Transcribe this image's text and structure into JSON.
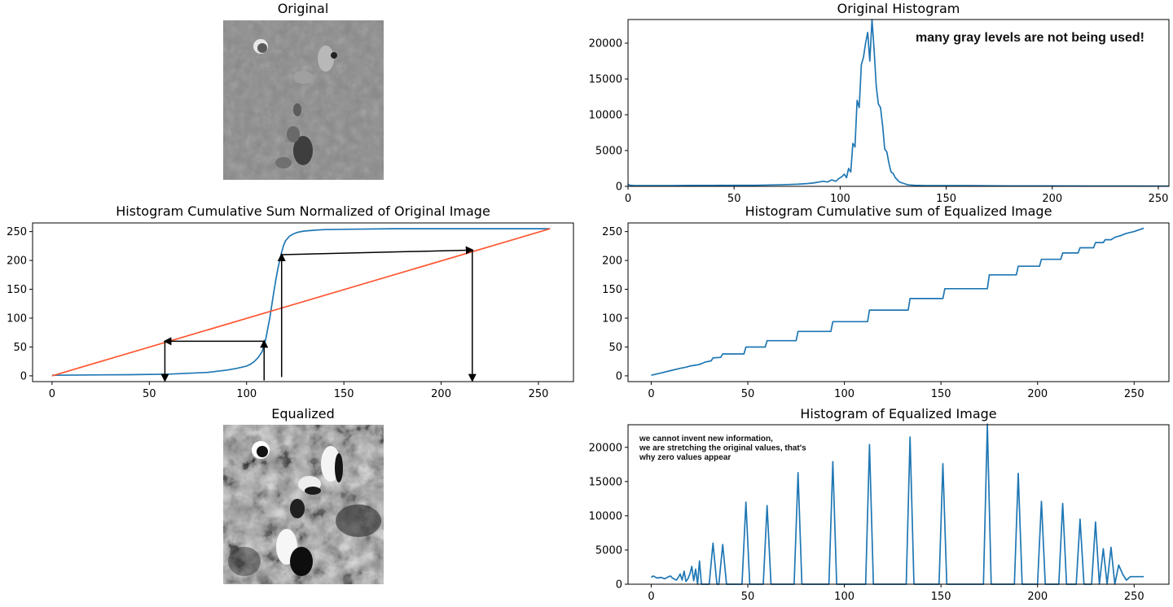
{
  "chart_data": [
    {
      "id": "original_image",
      "type": "image",
      "title": "Original",
      "tone": "low-contrast"
    },
    {
      "id": "original_histogram",
      "type": "line",
      "title": "Original Histogram",
      "xlim": [
        0,
        255
      ],
      "ylim": [
        0,
        23300
      ],
      "xticks": [
        0,
        50,
        100,
        150,
        200,
        250
      ],
      "yticks": [
        0,
        5000,
        10000,
        15000,
        20000
      ],
      "series": [
        {
          "color": "#1f77b4",
          "x": [
            0,
            1,
            3,
            5,
            10,
            20,
            30,
            40,
            50,
            60,
            70,
            75,
            80,
            85,
            88,
            90,
            92,
            94,
            96,
            98,
            99,
            100,
            101,
            102,
            103,
            104,
            105,
            106,
            107,
            108,
            109,
            110,
            111,
            112,
            113,
            114,
            115,
            116,
            117,
            118,
            119,
            120,
            121,
            122,
            123,
            124,
            125,
            126,
            127,
            128,
            130,
            132,
            135,
            140,
            150,
            160,
            180,
            200,
            220,
            240,
            255
          ],
          "y": [
            300,
            150,
            100,
            100,
            100,
            100,
            120,
            120,
            150,
            150,
            200,
            250,
            300,
            400,
            500,
            600,
            700,
            600,
            900,
            700,
            1000,
            1200,
            1400,
            1700,
            1200,
            2500,
            2000,
            6000,
            5500,
            12000,
            11000,
            17000,
            18000,
            20000,
            21500,
            17500,
            23300,
            19000,
            14000,
            11500,
            11000,
            8500,
            5200,
            4800,
            3200,
            2000,
            1800,
            1200,
            900,
            600,
            400,
            200,
            150,
            100,
            100,
            100,
            60,
            60,
            50,
            40,
            30
          ]
        }
      ],
      "annotations": [
        "many gray levels are not being used!"
      ]
    },
    {
      "id": "cdf_original",
      "type": "line",
      "title": "Histogram Cumulative Sum Normalized of Original Image",
      "xlim": [
        -10,
        268
      ],
      "ylim": [
        -10,
        265
      ],
      "xticks": [
        0,
        50,
        100,
        150,
        200,
        250
      ],
      "yticks": [
        0,
        50,
        100,
        150,
        200,
        250
      ],
      "series": [
        {
          "color": "#1f77b4",
          "x": [
            0,
            20,
            40,
            60,
            80,
            90,
            95,
            100,
            102,
            104,
            106,
            108,
            109,
            110,
            111,
            112,
            113,
            114,
            115,
            116,
            117,
            118,
            119,
            120,
            122,
            124,
            126,
            128,
            130,
            135,
            140,
            150,
            175,
            200,
            225,
            256
          ],
          "y": [
            1,
            1.5,
            2,
            3,
            6,
            10,
            13,
            17,
            20,
            25,
            32,
            42,
            52,
            66,
            84,
            102,
            124,
            146,
            166,
            184,
            200,
            214,
            226,
            234,
            242,
            246,
            248.5,
            250,
            251,
            252.5,
            253.5,
            254,
            255,
            255,
            255,
            255
          ]
        },
        {
          "color": "#ff5733",
          "x": [
            0,
            256
          ],
          "y": [
            0,
            255
          ]
        }
      ],
      "arrows": [
        {
          "from": [
            109,
            -8
          ],
          "to": [
            109,
            60
          ]
        },
        {
          "from": [
            109,
            60
          ],
          "to": [
            58,
            60
          ]
        },
        {
          "from": [
            58,
            60
          ],
          "to": [
            58,
            -8
          ]
        },
        {
          "from": [
            118,
            -2
          ],
          "to": [
            118,
            210
          ]
        },
        {
          "from": [
            118,
            210
          ],
          "to": [
            216,
            218
          ]
        },
        {
          "from": [
            216,
            218
          ],
          "to": [
            216,
            -8
          ]
        }
      ]
    },
    {
      "id": "cdf_equalized",
      "type": "line",
      "title": "Histogram Cumulative sum of Equalized Image",
      "xlim": [
        -12,
        268
      ],
      "ylim": [
        -10,
        265
      ],
      "xticks": [
        0,
        50,
        100,
        150,
        200,
        250
      ],
      "yticks": [
        0,
        50,
        100,
        150,
        200,
        250
      ],
      "series": [
        {
          "color": "#1f77b4",
          "x": [
            0,
            5,
            10,
            15,
            18,
            20,
            22,
            24,
            26,
            28,
            31,
            32,
            36,
            37,
            48,
            49,
            59,
            60,
            75,
            76,
            93,
            94,
            112,
            113,
            133,
            134,
            151,
            152,
            174,
            175,
            189,
            190,
            201,
            202,
            212,
            213,
            221,
            222,
            229,
            230,
            234,
            235,
            238,
            240,
            243,
            246,
            250,
            255
          ],
          "y": [
            1,
            5,
            9,
            13,
            15,
            17,
            18,
            19,
            21,
            24,
            26,
            31,
            32,
            38,
            38,
            50,
            50,
            61,
            61,
            77,
            77,
            94,
            94,
            114,
            114,
            134,
            134,
            151,
            151,
            175,
            175,
            190,
            190,
            202,
            202,
            213,
            213,
            222,
            222,
            231,
            231,
            236,
            236,
            240,
            243,
            247,
            250,
            256
          ]
        }
      ]
    },
    {
      "id": "equalized_image",
      "type": "image",
      "title": "Equalized",
      "tone": "high-contrast"
    },
    {
      "id": "equalized_histogram",
      "type": "line",
      "title": "Histogram of Equalized Image",
      "xlim": [
        -12,
        268
      ],
      "ylim": [
        0,
        23300
      ],
      "xticks": [
        0,
        50,
        100,
        150,
        200,
        250
      ],
      "yticks": [
        0,
        5000,
        10000,
        15000,
        20000
      ],
      "series": [
        {
          "color": "#1f77b4",
          "x": [
            0,
            1,
            3,
            5,
            7,
            9,
            10,
            11,
            13,
            14,
            15,
            16,
            17,
            18,
            19,
            20,
            21,
            22,
            23,
            24,
            25,
            26,
            27,
            30,
            32,
            34,
            35,
            37,
            39,
            47,
            49,
            51,
            58,
            60,
            62,
            74,
            76,
            78,
            92,
            94,
            96,
            111,
            113,
            115,
            132,
            134,
            136,
            149,
            151,
            153,
            172,
            174,
            176,
            188,
            190,
            192,
            200,
            202,
            204,
            211,
            213,
            215,
            220,
            222,
            224,
            228,
            230,
            232,
            234,
            236,
            238,
            240,
            242,
            244,
            246,
            248,
            250,
            255
          ],
          "y": [
            1000,
            1200,
            900,
            1000,
            800,
            1100,
            1200,
            900,
            600,
            1000,
            1500,
            600,
            1900,
            400,
            800,
            1500,
            2600,
            500,
            2200,
            0,
            3400,
            0,
            0,
            0,
            6000,
            0,
            0,
            5800,
            0,
            0,
            12000,
            0,
            0,
            11500,
            0,
            0,
            16300,
            0,
            0,
            17900,
            0,
            0,
            20400,
            0,
            0,
            21500,
            0,
            0,
            17600,
            0,
            0,
            23400,
            0,
            0,
            16200,
            0,
            0,
            12100,
            0,
            0,
            11800,
            0,
            0,
            9500,
            0,
            0,
            9100,
            0,
            5200,
            0,
            5400,
            0,
            2800,
            1500,
            600,
            1100,
            1100,
            1100
          ]
        }
      ],
      "annotations": [
        "we cannot invent new information,",
        "we are stretching the original values, that's",
        "why zero values appear"
      ]
    }
  ]
}
